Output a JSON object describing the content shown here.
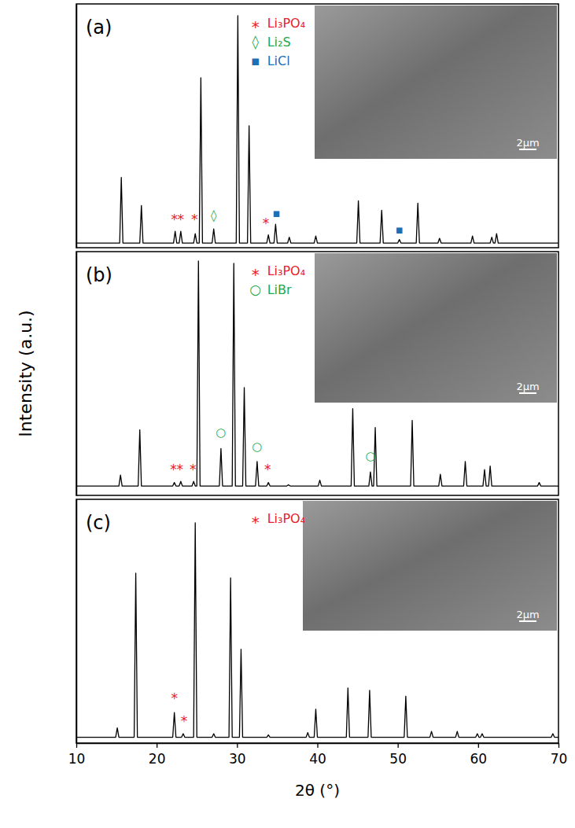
{
  "chart_data": {
    "type": "line",
    "x_label": "2θ (°)",
    "y_label": "Intensity (a.u.)",
    "xlim": [
      10,
      70
    ],
    "xticks": [
      10,
      20,
      30,
      40,
      50,
      60,
      70
    ],
    "tick_labels": "x",
    "panels": [
      {
        "label": "(a)",
        "ylim": [
          0,
          104
        ],
        "legend": "top",
        "inset_label": "2μm",
        "series": [
          {
            "color": "#000000",
            "x": [
              10,
              15.4,
              15.6,
              15.8,
              17.9,
              18.1,
              18.3,
              22.1,
              22.3,
              22.5,
              22.8,
              23.0,
              23.2,
              24.6,
              24.8,
              25.0,
              25.3,
              25.5,
              25.7,
              26.9,
              27.1,
              27.3,
              29.9,
              30.1,
              30.3,
              31.3,
              31.5,
              31.7,
              33.7,
              33.9,
              34.1,
              34.6,
              34.8,
              35.0,
              36.3,
              36.5,
              36.7,
              39.6,
              39.8,
              40.0,
              44.9,
              45.1,
              45.3,
              47.8,
              48.0,
              48.2,
              50.0,
              50.2,
              50.4,
              52.3,
              52.5,
              52.7,
              55.0,
              55.2,
              55.4,
              59.1,
              59.3,
              59.5,
              61.5,
              61.7,
              61.9,
              62.1,
              62.3,
              62.5,
              70
            ],
            "values": [
              2,
              2,
              30,
              2,
              2,
              18,
              2,
              2,
              7,
              2,
              2,
              7,
              2,
              2,
              6,
              2,
              2,
              72.5,
              2,
              2,
              8,
              2,
              2,
              99,
              2,
              2,
              52,
              2,
              2,
              5.5,
              2,
              2,
              10,
              2,
              2,
              4.5,
              2,
              2,
              5,
              2,
              2,
              20,
              2,
              2,
              16,
              2,
              2,
              3.5,
              2,
              2,
              19,
              2,
              2,
              4,
              2,
              2,
              5,
              2,
              2,
              4.5,
              2,
              2,
              6,
              2,
              2
            ]
          }
        ],
        "phases": [
          {
            "name": "Li₃PO₄",
            "symbol": "*",
            "color": "#e8202a",
            "x": [
              22.2,
              23.0,
              24.7,
              33.6
            ],
            "y": [
              10,
              10,
              10,
              8.5
            ]
          },
          {
            "name": "Li₂S",
            "symbol": "◊",
            "color": "#1ea84a",
            "x": [
              27.1
            ],
            "y": [
              12
            ]
          },
          {
            "name": "LiCl",
            "symbol": "▪",
            "color": "#1a6fb5",
            "x": [
              34.9,
              50.2
            ],
            "y": [
              13,
              6
            ]
          }
        ]
      },
      {
        "label": "(b)",
        "ylim": [
          0,
          104
        ],
        "legend": "top",
        "inset_label": "2μm",
        "series": [
          {
            "color": "#000000",
            "x": [
              10,
              15.3,
              15.5,
              15.7,
              17.7,
              17.9,
              18.1,
              22.0,
              22.2,
              22.4,
              22.8,
              23.0,
              23.2,
              24.4,
              24.6,
              24.8,
              25.0,
              25.2,
              25.4,
              27.8,
              28.0,
              28.2,
              29.4,
              29.6,
              29.8,
              30.7,
              30.9,
              31.1,
              32.3,
              32.5,
              32.7,
              33.7,
              33.9,
              34.1,
              36.2,
              36.4,
              36.6,
              40.1,
              40.3,
              40.5,
              44.2,
              44.4,
              44.6,
              46.4,
              46.6,
              46.8,
              47.0,
              47.2,
              47.4,
              51.6,
              51.8,
              52.0,
              55.1,
              55.3,
              55.5,
              58.2,
              58.4,
              58.6,
              60.6,
              60.8,
              61.0,
              61.3,
              61.5,
              61.7,
              67.4,
              67.6,
              67.8,
              70
            ],
            "values": [
              4,
              4,
              8.7,
              4,
              4,
              28,
              4,
              4,
              5.5,
              4,
              4,
              6,
              4,
              4,
              6,
              4,
              4,
              100,
              4,
              4,
              20,
              4,
              4,
              99,
              4,
              4,
              46,
              4,
              4,
              14.5,
              4,
              4,
              5.5,
              4,
              4,
              4.5,
              4,
              4,
              6.5,
              4,
              4,
              37,
              4,
              4,
              10,
              4,
              4,
              29,
              4,
              4,
              32,
              4,
              4,
              9,
              4,
              4,
              14.5,
              4,
              4,
              11,
              4,
              4,
              12.5,
              4,
              4,
              5.5,
              4,
              4
            ]
          }
        ],
        "phases": [
          {
            "name": "Li₃PO₄",
            "symbol": "*",
            "color": "#e8202a",
            "x": [
              22.1,
              22.9,
              24.5,
              33.8
            ],
            "y": [
              9,
              9,
              9,
              9
            ]
          },
          {
            "name": "LiBr",
            "symbol": "○",
            "color": "#1ea84a",
            "x": [
              28.0,
              32.5,
              46.6
            ],
            "y": [
              25,
              19,
              15
            ]
          }
        ]
      },
      {
        "label": "(c)",
        "ylim": [
          0,
          104
        ],
        "legend": "top",
        "inset_label": "2μm",
        "series": [
          {
            "color": "#000000",
            "x": [
              10,
              14.9,
              15.1,
              15.3,
              17.2,
              17.4,
              17.6,
              22.0,
              22.2,
              22.4,
              23.1,
              23.3,
              23.5,
              24.6,
              24.8,
              25.0,
              26.9,
              27.1,
              27.3,
              29.0,
              29.2,
              29.4,
              30.3,
              30.5,
              30.7,
              33.7,
              33.9,
              34.1,
              38.6,
              38.8,
              39.0,
              39.6,
              39.8,
              40.0,
              43.6,
              43.8,
              44.0,
              46.3,
              46.5,
              46.7,
              50.8,
              51.0,
              51.2,
              54.0,
              54.2,
              54.4,
              57.2,
              57.4,
              57.6,
              59.7,
              59.9,
              60.1,
              60.3,
              60.5,
              60.7,
              69.1,
              69.3,
              69.5,
              70
            ],
            "values": [
              2.5,
              2.5,
              6.5,
              2.5,
              2.5,
              72.5,
              2.5,
              2.5,
              13,
              2.5,
              2.5,
              4,
              2.5,
              2.5,
              94,
              2.5,
              2.5,
              4,
              2.5,
              2.5,
              70.5,
              2.5,
              2.5,
              40,
              2.5,
              2.5,
              3.5,
              2.5,
              2.5,
              4.5,
              2.5,
              2.5,
              14.5,
              2.5,
              2.5,
              23.5,
              2.5,
              2.5,
              22.5,
              2.5,
              2.5,
              20,
              2.5,
              2.5,
              5,
              2.5,
              2.5,
              5,
              2.5,
              2.5,
              4,
              2.5,
              2.5,
              4,
              2.5,
              2.5,
              4,
              2.5,
              2.5
            ]
          }
        ],
        "phases": [
          {
            "name": "Li₃PO₄",
            "symbol": "*",
            "color": "#e8202a",
            "x": [
              22.2,
              23.4
            ],
            "y": [
              17,
              7.5
            ]
          }
        ]
      }
    ]
  }
}
